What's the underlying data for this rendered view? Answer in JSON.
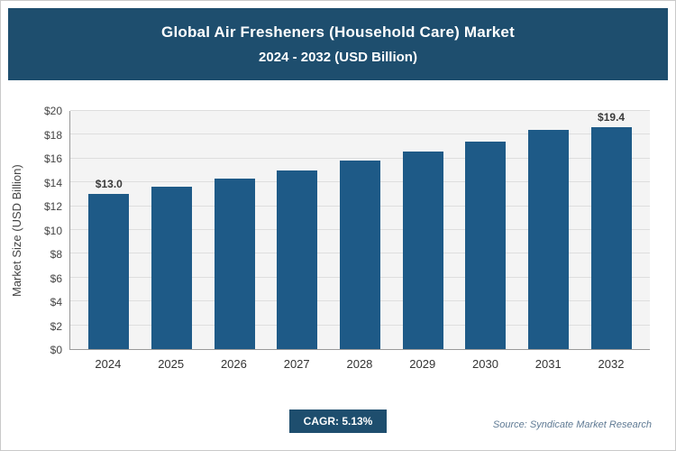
{
  "header": {
    "title_line1": "Global Air Fresheners (Household Care) Market",
    "title_line2": "2024 - 2032 (USD Billion)"
  },
  "chart_data": {
    "type": "bar",
    "title": "Global Air Fresheners (Household Care) Market 2024 - 2032 (USD Billion)",
    "categories": [
      "2024",
      "2025",
      "2026",
      "2027",
      "2028",
      "2029",
      "2030",
      "2031",
      "2032"
    ],
    "values": [
      13.0,
      13.6,
      14.3,
      15.0,
      15.8,
      16.6,
      17.4,
      18.4,
      19.4
    ],
    "xlabel": "",
    "ylabel": "Market Size (USD Billion)",
    "ylim": [
      0,
      20
    ],
    "ytick_step": 2,
    "ytick_prefix": "$",
    "grid": true,
    "bar_color": "#1e5a87",
    "labeled_bars": {
      "first": "$13.0",
      "last": "$19.4"
    }
  },
  "footer": {
    "cagr_label": "CAGR: 5.13%",
    "source": "Source: Syndicate Market Research"
  }
}
